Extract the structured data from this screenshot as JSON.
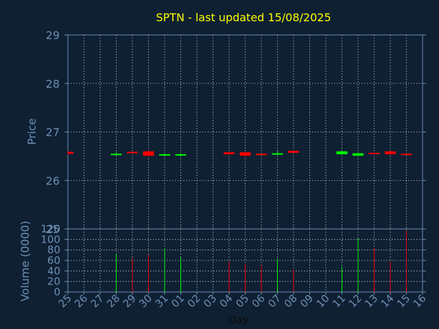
{
  "chart_data": {
    "type": "candlestick",
    "title": "SPTN - last updated 15/08/2025",
    "xlabel": "Day",
    "price_panel": {
      "ylabel": "Price",
      "ylim": [
        25,
        29
      ],
      "yticks": [
        25,
        26,
        27,
        28,
        29
      ],
      "grid": true
    },
    "volume_panel": {
      "ylabel": "Volume (0000)",
      "ylim": [
        0,
        120
      ],
      "yticks": [
        0,
        20,
        40,
        60,
        80,
        100,
        120
      ],
      "grid": true
    },
    "x_tick_labels": [
      "25",
      "26",
      "27",
      "28",
      "29",
      "30",
      "31",
      "01",
      "02",
      "03",
      "04",
      "05",
      "06",
      "07",
      "08",
      "09",
      "10",
      "11",
      "12",
      "13",
      "14",
      "15",
      "16"
    ],
    "candles": [
      {
        "day": "25",
        "open": 26.59,
        "close": 26.55,
        "high": 26.6,
        "low": 26.53,
        "volume": 0
      },
      {
        "day": "28",
        "open": 26.54,
        "close": 26.55,
        "high": 26.59,
        "low": 26.53,
        "volume": 73
      },
      {
        "day": "29",
        "open": 26.59,
        "close": 26.58,
        "high": 26.6,
        "low": 26.57,
        "volume": 64
      },
      {
        "day": "30",
        "open": 26.6,
        "close": 26.51,
        "high": 26.62,
        "low": 26.49,
        "volume": 71
      },
      {
        "day": "31",
        "open": 26.52,
        "close": 26.54,
        "high": 26.56,
        "low": 26.51,
        "volume": 83
      },
      {
        "day": "01",
        "open": 26.52,
        "close": 26.54,
        "high": 26.57,
        "low": 26.49,
        "volume": 66
      },
      {
        "day": "04",
        "open": 26.58,
        "close": 26.54,
        "high": 26.59,
        "low": 26.53,
        "volume": 57
      },
      {
        "day": "05",
        "open": 26.58,
        "close": 26.51,
        "high": 26.59,
        "low": 26.49,
        "volume": 52
      },
      {
        "day": "06",
        "open": 26.55,
        "close": 26.54,
        "high": 26.56,
        "low": 26.53,
        "volume": 51
      },
      {
        "day": "07",
        "open": 26.54,
        "close": 26.56,
        "high": 26.6,
        "low": 26.53,
        "volume": 64
      },
      {
        "day": "08",
        "open": 26.61,
        "close": 26.57,
        "high": 26.62,
        "low": 26.56,
        "volume": 42
      },
      {
        "day": "11",
        "open": 26.54,
        "close": 26.6,
        "high": 26.61,
        "low": 26.53,
        "volume": 48
      },
      {
        "day": "12",
        "open": 26.51,
        "close": 26.56,
        "high": 26.58,
        "low": 26.5,
        "volume": 103
      },
      {
        "day": "13",
        "open": 26.57,
        "close": 26.56,
        "high": 26.57,
        "low": 26.55,
        "volume": 83
      },
      {
        "day": "14",
        "open": 26.6,
        "close": 26.54,
        "high": 26.61,
        "low": 26.53,
        "volume": 57
      },
      {
        "day": "15",
        "open": 26.55,
        "close": 26.53,
        "high": 26.56,
        "low": 26.52,
        "volume": 117
      }
    ],
    "colors": {
      "background": "#0f2033",
      "axis": "#6d8fb3",
      "grid": "#ffffff",
      "title": "#ffff00",
      "up": "#00ff00",
      "down": "#ff0000"
    }
  }
}
